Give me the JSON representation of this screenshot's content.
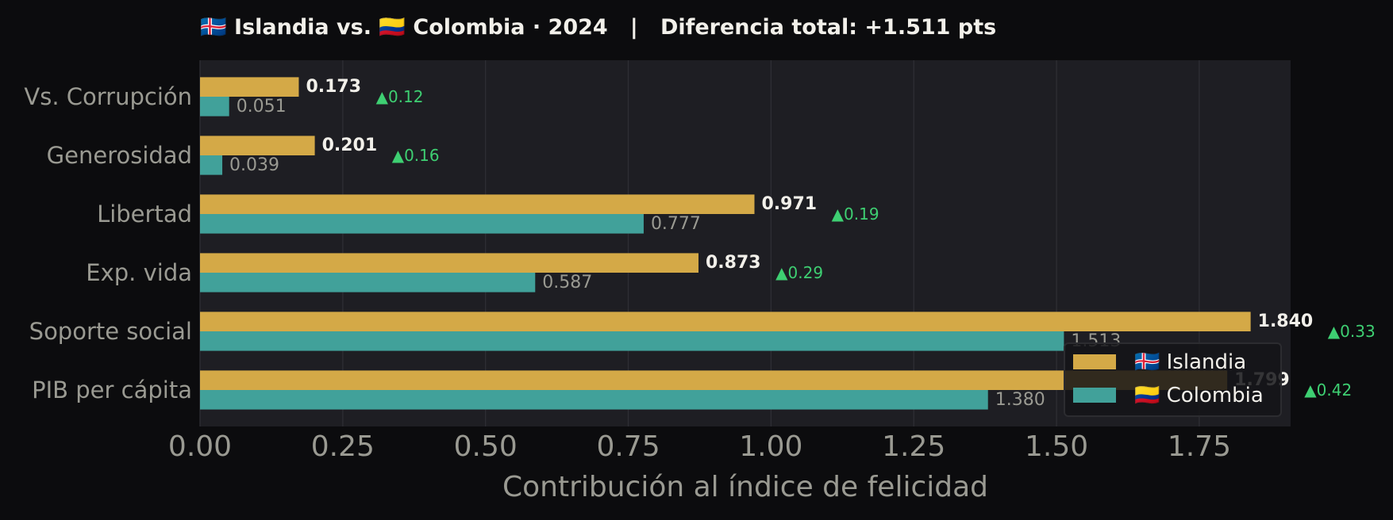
{
  "chart_data": {
    "type": "bar",
    "orientation": "horizontal",
    "title": "🇮🇸 Islandia vs. 🇨🇴 Colombia · 2024   |   Diferencia total: +1.511 pts",
    "xlabel": "Contribución al índice de felicidad",
    "ylabel": "",
    "xlim": [
      0,
      1.91
    ],
    "xticks": [
      "0.00",
      "0.25",
      "0.50",
      "0.75",
      "1.00",
      "1.25",
      "1.50",
      "1.75"
    ],
    "grid": true,
    "legend_position": "lower-right",
    "categories": [
      "Vs. Corrupción",
      "Generosidad",
      "Libertad",
      "Exp. vida",
      "Soporte social",
      "PIB per cápita"
    ],
    "series": [
      {
        "name": "🇮🇸 Islandia",
        "color": "#d4a947",
        "values": [
          0.173,
          0.201,
          0.971,
          0.873,
          1.84,
          1.799
        ],
        "labels": [
          "0.173",
          "0.201",
          "0.971",
          "0.873",
          "1.840",
          "1.799"
        ]
      },
      {
        "name": "🇨🇴 Colombia",
        "color": "#41a19a",
        "values": [
          0.051,
          0.039,
          0.777,
          0.587,
          1.513,
          1.38
        ],
        "labels": [
          "0.051",
          "0.039",
          "0.777",
          "0.587",
          "1.513",
          "1.380"
        ]
      }
    ],
    "differences": [
      "▲0.12",
      "▲0.16",
      "▲0.19",
      "▲0.29",
      "▲0.33",
      "▲0.42"
    ],
    "colors": {
      "background": "#0c0c0e",
      "plot": "#1e1e23",
      "text": "#9a9a92",
      "title": "#f2f0ea",
      "diff": "#3ecf72"
    }
  }
}
